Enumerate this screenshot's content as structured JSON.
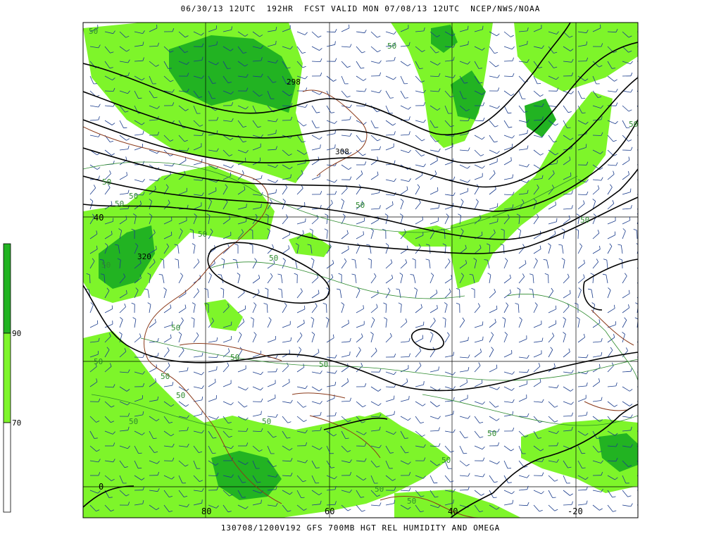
{
  "header": {
    "title": "06/30/13 12UTC  192HR  FCST VALID MON 07/08/13 12UTC  NCEP/NWS/NOAA"
  },
  "footer": {
    "caption": "130708/1200V192 GFS 700MB HGT REL HUMIDITY AND OMEGA"
  },
  "colors": {
    "rh_90": "#22b322",
    "rh_70": "#7ef52a",
    "height_contour": "#000000",
    "rh_contour": "#2e8b2e",
    "coastline": "#8b3a1a",
    "wind_barb": "#1a3c8c",
    "grid": "#000000"
  },
  "legend": {
    "levels": [
      "90",
      "70"
    ]
  },
  "axes": {
    "lat_labels": [
      "40",
      "0"
    ],
    "lon_labels": [
      "80",
      "60",
      "40",
      "-20"
    ]
  },
  "height_labels": [
    "298",
    "308",
    "320"
  ],
  "rh_labels": [
    "50",
    "50",
    "50",
    "50",
    "50",
    "50",
    "50",
    "50",
    "50",
    "50",
    "50",
    "50",
    "50",
    "50",
    "50",
    "50",
    "50",
    "50",
    "50",
    "50",
    "50",
    "50",
    "50"
  ]
}
